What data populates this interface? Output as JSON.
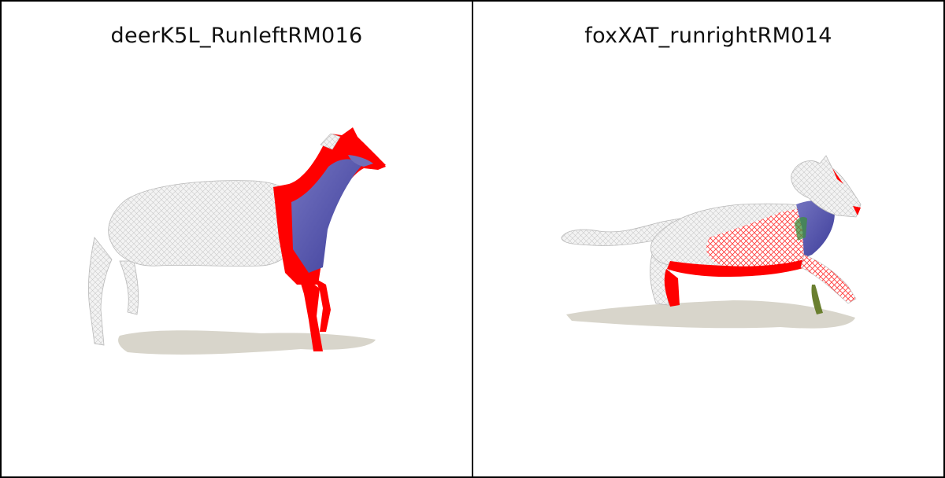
{
  "viewports": [
    {
      "title": "deerK5L_RunleftRM016",
      "subject": "deer",
      "colors": {
        "highlight": "#ff0000",
        "shade": "#5b5bb0",
        "mesh": "#f2f2f2",
        "shadow": "#d6d3c9"
      }
    },
    {
      "title": "foxXAT_runrightRM014",
      "subject": "fox",
      "colors": {
        "highlight": "#ff0000",
        "shade": "#5b5bb0",
        "mesh": "#f2f2f2",
        "shadow": "#d6d3c9",
        "accent": "#3e8f3e"
      }
    }
  ]
}
